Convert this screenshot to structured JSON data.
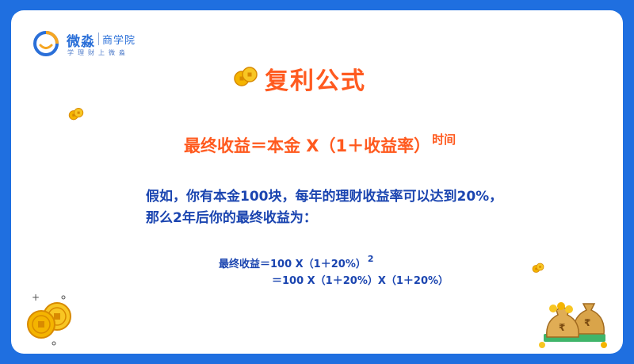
{
  "brand": {
    "name": "微淼",
    "sub": "商学院",
    "slogan": "学理财上微淼"
  },
  "title": "复利公式",
  "formula": {
    "text": "最终收益＝本金 X（1＋收益率）",
    "exponent": "时间"
  },
  "description": {
    "line1": "假如，你有本金100块，每年的理财收益率可以达到20%，",
    "line2": "那么2年后你的最终收益为："
  },
  "calculation": {
    "line1": "最终收益＝100 X（1＋20%）",
    "line1_exponent": "2",
    "line2": "＝100 X（1＋20%）X（1＋20%）"
  },
  "colors": {
    "background": "#1f6fe0",
    "title": "#ff5a1f",
    "body_text": "#1b45b0",
    "coin": "#f4b400"
  },
  "icons": [
    "logo-icon",
    "coin-icon",
    "money-bag-icon"
  ]
}
